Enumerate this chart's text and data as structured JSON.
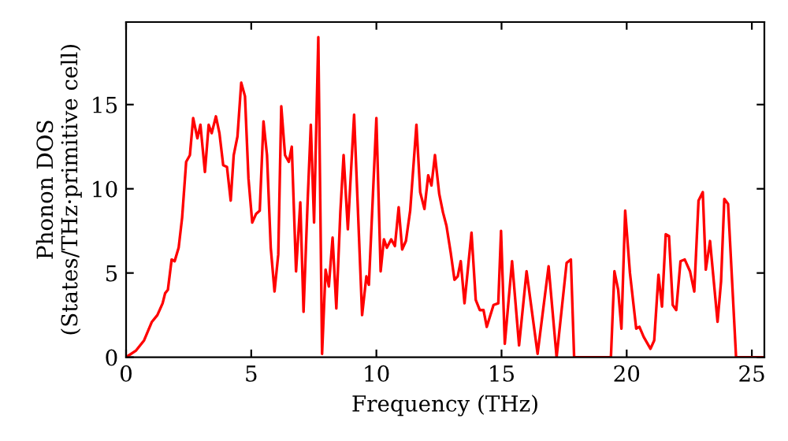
{
  "chart_data": {
    "type": "line",
    "xlabel": "Frequency (THz)",
    "ylabel": "Phonon DOS\n(States/THz·primitive cell)",
    "xlim": [
      0,
      25.5
    ],
    "ylim": [
      0,
      19.9
    ],
    "xticks": [
      0,
      5,
      10,
      15,
      20,
      25
    ],
    "yticks": [
      0,
      5,
      10,
      15
    ],
    "grid": false,
    "marker": "none",
    "line_style": "solid",
    "series": [
      {
        "color": "#ff0000",
        "x": [
          0,
          0.4,
          0.72,
          1.03,
          1.25,
          1.46,
          1.56,
          1.67,
          1.82,
          1.94,
          2.1,
          2.24,
          2.4,
          2.55,
          2.68,
          2.85,
          2.97,
          3.15,
          3.3,
          3.42,
          3.59,
          3.73,
          3.88,
          4.03,
          4.18,
          4.3,
          4.45,
          4.6,
          4.75,
          4.89,
          5.04,
          5.19,
          5.34,
          5.49,
          5.63,
          5.78,
          5.93,
          6.08,
          6.2,
          6.35,
          6.5,
          6.62,
          6.79,
          6.96,
          7.09,
          7.26,
          7.38,
          7.51,
          7.68,
          7.83,
          7.97,
          8.1,
          8.25,
          8.4,
          8.56,
          8.69,
          8.86,
          9.11,
          9.43,
          9.6,
          9.7,
          10.0,
          10.17,
          10.3,
          10.42,
          10.59,
          10.74,
          10.89,
          11.03,
          11.18,
          11.35,
          11.6,
          11.75,
          11.92,
          12.07,
          12.2,
          12.34,
          12.51,
          12.66,
          12.8,
          12.97,
          13.12,
          13.25,
          13.37,
          13.52,
          13.8,
          13.97,
          14.13,
          14.28,
          14.41,
          14.68,
          14.87,
          14.98,
          15.13,
          15.42,
          15.7,
          16.0,
          16.44,
          16.88,
          17.2,
          17.6,
          17.77,
          17.9,
          19.37,
          19.51,
          19.66,
          19.79,
          19.94,
          20.13,
          20.38,
          20.51,
          20.68,
          20.95,
          21.1,
          21.27,
          21.41,
          21.56,
          21.69,
          21.84,
          21.98,
          22.15,
          22.32,
          22.53,
          22.7,
          22.87,
          23.04,
          23.16,
          23.33,
          23.63,
          23.77,
          23.9,
          24.05,
          24.37,
          25.5
        ],
        "values": [
          0,
          0.4,
          1.0,
          2.1,
          2.5,
          3.2,
          3.8,
          4.0,
          5.8,
          5.7,
          6.5,
          8.3,
          11.6,
          12.0,
          14.2,
          13.0,
          13.8,
          11.0,
          13.8,
          13.3,
          14.3,
          13.3,
          11.4,
          11.3,
          9.3,
          12.0,
          13.1,
          16.3,
          15.5,
          10.6,
          8.0,
          8.5,
          8.7,
          14.0,
          12.0,
          6.5,
          3.9,
          6.1,
          14.9,
          12.0,
          11.6,
          12.5,
          5.1,
          9.2,
          2.7,
          9.5,
          13.8,
          8.0,
          19.0,
          0.2,
          5.2,
          4.2,
          7.1,
          2.9,
          8.6,
          12.0,
          7.6,
          14.4,
          2.5,
          4.8,
          4.3,
          14.2,
          5.1,
          7.0,
          6.5,
          7.0,
          6.6,
          8.9,
          6.4,
          6.9,
          8.7,
          13.8,
          9.8,
          8.8,
          10.8,
          10.2,
          12.0,
          9.7,
          8.6,
          7.8,
          6.2,
          4.6,
          4.8,
          5.7,
          3.2,
          7.4,
          3.4,
          2.8,
          2.8,
          1.8,
          3.1,
          3.2,
          7.5,
          0.8,
          5.7,
          0.7,
          5.1,
          0.2,
          5.4,
          0,
          5.6,
          5.8,
          0,
          0,
          5.1,
          4.0,
          1.7,
          8.7,
          5.0,
          1.7,
          1.8,
          1.2,
          0.5,
          1.0,
          4.9,
          3.0,
          7.3,
          7.2,
          3.1,
          2.8,
          5.7,
          5.8,
          5.1,
          3.9,
          9.3,
          9.8,
          5.2,
          6.9,
          2.1,
          4.5,
          9.4,
          9.1,
          0,
          0
        ]
      }
    ]
  }
}
